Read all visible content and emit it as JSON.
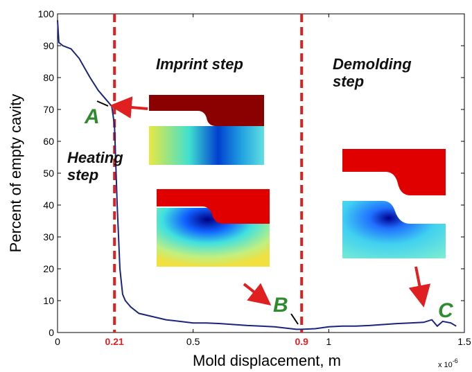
{
  "chart_data": {
    "type": "line",
    "ylabel": "Percent of empty cavity",
    "xlabel": "Mold displacement, m",
    "x_scale_label": "x 10",
    "x_scale_exponent": "-6",
    "x": [
      0,
      0.005,
      0.02,
      0.05,
      0.08,
      0.1,
      0.12,
      0.15,
      0.18,
      0.2,
      0.21,
      0.22,
      0.23,
      0.24,
      0.25,
      0.27,
      0.3,
      0.35,
      0.4,
      0.45,
      0.5,
      0.55,
      0.6,
      0.65,
      0.7,
      0.75,
      0.8,
      0.85,
      0.88,
      0.9,
      0.95,
      1.0,
      1.05,
      1.1,
      1.15,
      1.2,
      1.25,
      1.3,
      1.35,
      1.38,
      1.4,
      1.42,
      1.45,
      1.47
    ],
    "values": [
      98,
      91,
      90,
      89,
      86,
      83,
      80,
      76,
      73,
      71,
      65,
      40,
      20,
      12,
      10,
      8,
      6,
      5,
      4,
      3.5,
      3,
      3,
      2.8,
      2.5,
      2.2,
      2,
      1.8,
      1.3,
      1,
      1,
      1.2,
      1.8,
      2,
      2,
      2.2,
      2.5,
      2.8,
      3,
      3.2,
      4,
      2,
      3.5,
      3,
      2
    ],
    "color": "#1a237e",
    "xlim": [
      0,
      1.5
    ],
    "xticks": [
      0,
      0.5,
      1,
      1.5
    ],
    "ylim": [
      0,
      100
    ],
    "yticks": [
      0,
      10,
      20,
      30,
      40,
      50,
      60,
      70,
      80,
      90,
      100
    ],
    "vlines": [
      0.21,
      0.9
    ],
    "vline_color": "#e02020",
    "annotations": [
      "Imprint step",
      "Demolding step",
      "Heating step",
      "A",
      "B",
      "C"
    ]
  }
}
